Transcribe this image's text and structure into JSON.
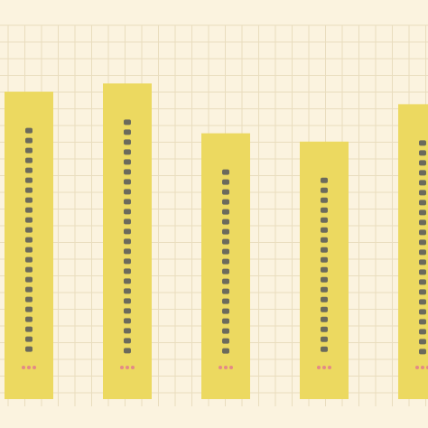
{
  "chart_data": {
    "type": "bar",
    "title": "",
    "xlabel": "",
    "ylabel": "",
    "categories": [
      "",
      "",
      "",
      "",
      ""
    ],
    "values": [
      74,
      76,
      64,
      62,
      71
    ],
    "ylim": [
      0,
      90
    ],
    "grid": true,
    "legend": "none"
  },
  "colors": {
    "background": "#fbf3df",
    "grid": "#e9ddbe",
    "bar": "#ecd960",
    "bar_text": "#6b6a5c",
    "marker": "#e48a86",
    "title": "#4f4d48"
  }
}
